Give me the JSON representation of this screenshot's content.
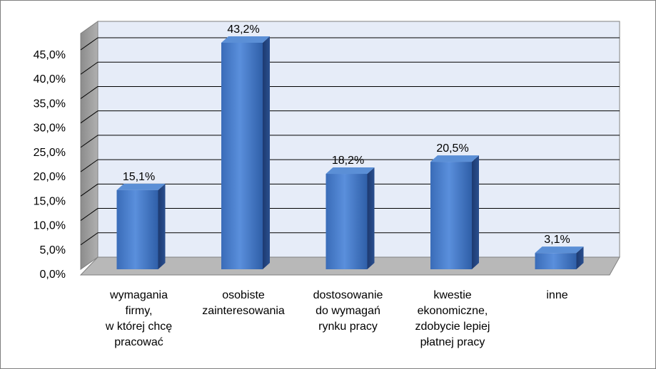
{
  "chart_data": {
    "type": "bar",
    "style": "3d-column",
    "categories": [
      [
        "wymagania",
        "firmy,",
        "w której chcę",
        "pracować"
      ],
      [
        "osobiste",
        "zainteresowania"
      ],
      [
        "dostosowanie",
        "do wymagań",
        "rynku pracy"
      ],
      [
        "kwestie",
        "ekonomiczne,",
        "zdobycie lepiej",
        "płatnej pracy"
      ],
      [
        "inne"
      ]
    ],
    "values": [
      15.1,
      43.2,
      18.2,
      20.5,
      3.1
    ],
    "value_labels": [
      "15,1%",
      "43,2%",
      "18,2%",
      "20,5%",
      "3,1%"
    ],
    "y_ticks": [
      0,
      5,
      10,
      15,
      20,
      25,
      30,
      35,
      40,
      45
    ],
    "y_tick_labels": [
      "0,0%",
      "5,0%",
      "10,0%",
      "15,0%",
      "20,0%",
      "25,0%",
      "30,0%",
      "35,0%",
      "40,0%",
      "45,0%"
    ],
    "ylim": [
      0,
      45
    ],
    "grid": true,
    "legend": "none",
    "colors": {
      "bar_front": "#4a7ecb",
      "bar_front_light": "#6a9be0",
      "bar_side": "#1f3f78",
      "bar_top": "#5b8fd6",
      "wall": "#e6ecf8",
      "side_wall": "#9a9a9a",
      "floor": "#b8b8b8",
      "grid": "#000000"
    }
  }
}
